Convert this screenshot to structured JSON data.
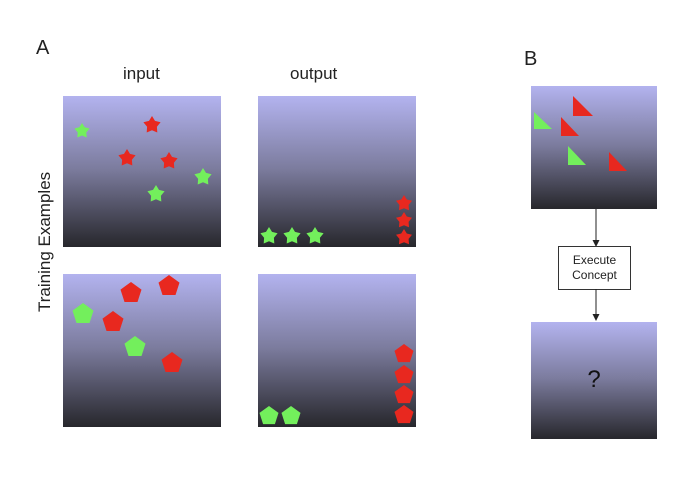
{
  "panel_a": {
    "letter": "A",
    "col_input": "input",
    "col_output": "output",
    "row_label": "Training Examples"
  },
  "panel_b": {
    "letter": "B",
    "execute_label_line1": "Execute",
    "execute_label_line2": "Concept",
    "unknown_output": "?"
  },
  "colors": {
    "red": "#e8281f",
    "green": "#73ef5c",
    "gradient_top": "#b3b3ef",
    "gradient_bottom": "#27272c"
  },
  "shapes": {
    "example1": "star",
    "example2": "pentagon",
    "test": "right-triangle"
  }
}
